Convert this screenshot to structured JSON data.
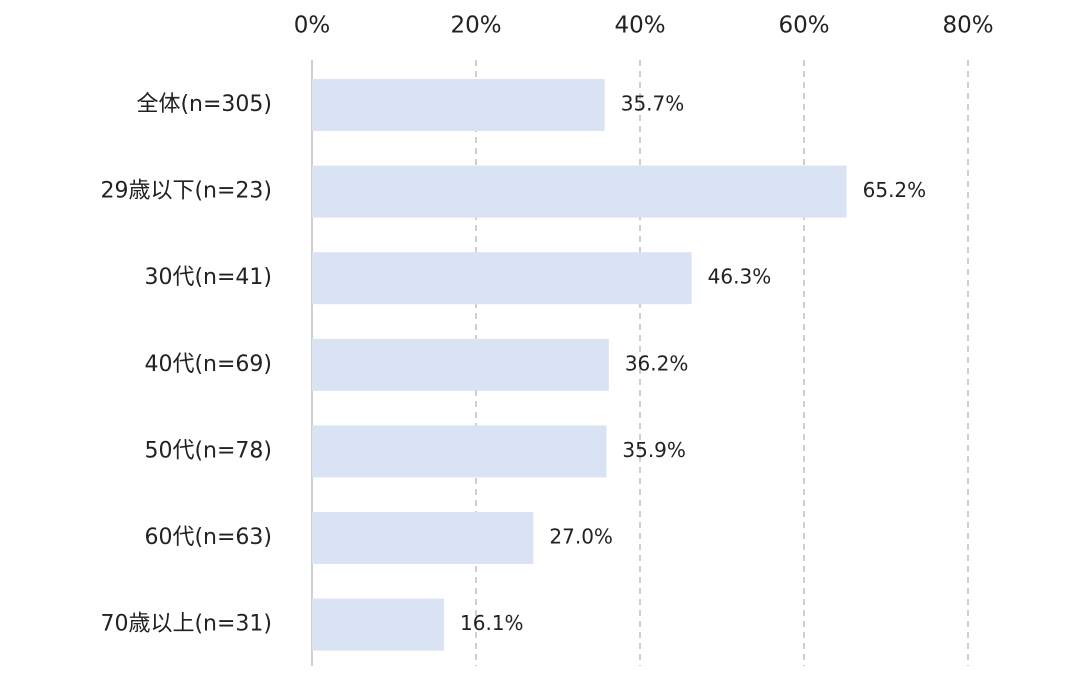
{
  "chart_data": {
    "type": "bar",
    "orientation": "horizontal",
    "categories": [
      "全体(n=305)",
      "29歳以下(n=23)",
      "30代(n=41)",
      "40代(n=69)",
      "50代(n=78)",
      "60代(n=63)",
      "70歳以上(n=31)"
    ],
    "values": [
      35.7,
      65.2,
      46.3,
      36.2,
      35.9,
      27.0,
      16.1
    ],
    "value_labels": [
      "35.7%",
      "65.2%",
      "46.3%",
      "36.2%",
      "35.9%",
      "27.0%",
      "16.1%"
    ],
    "ticks": [
      0,
      20,
      40,
      60,
      80
    ],
    "tick_labels": [
      "0%",
      "20%",
      "40%",
      "60%",
      "80%"
    ],
    "xlim": [
      0,
      80
    ],
    "grid": "dashed vertical",
    "axis_position": "top",
    "title": "",
    "xlabel": "",
    "ylabel": "",
    "colors": {
      "bar": "#dae3f3",
      "grid": "#bfbfbf",
      "axis": "#bfbfbf",
      "text": "#222222"
    }
  }
}
